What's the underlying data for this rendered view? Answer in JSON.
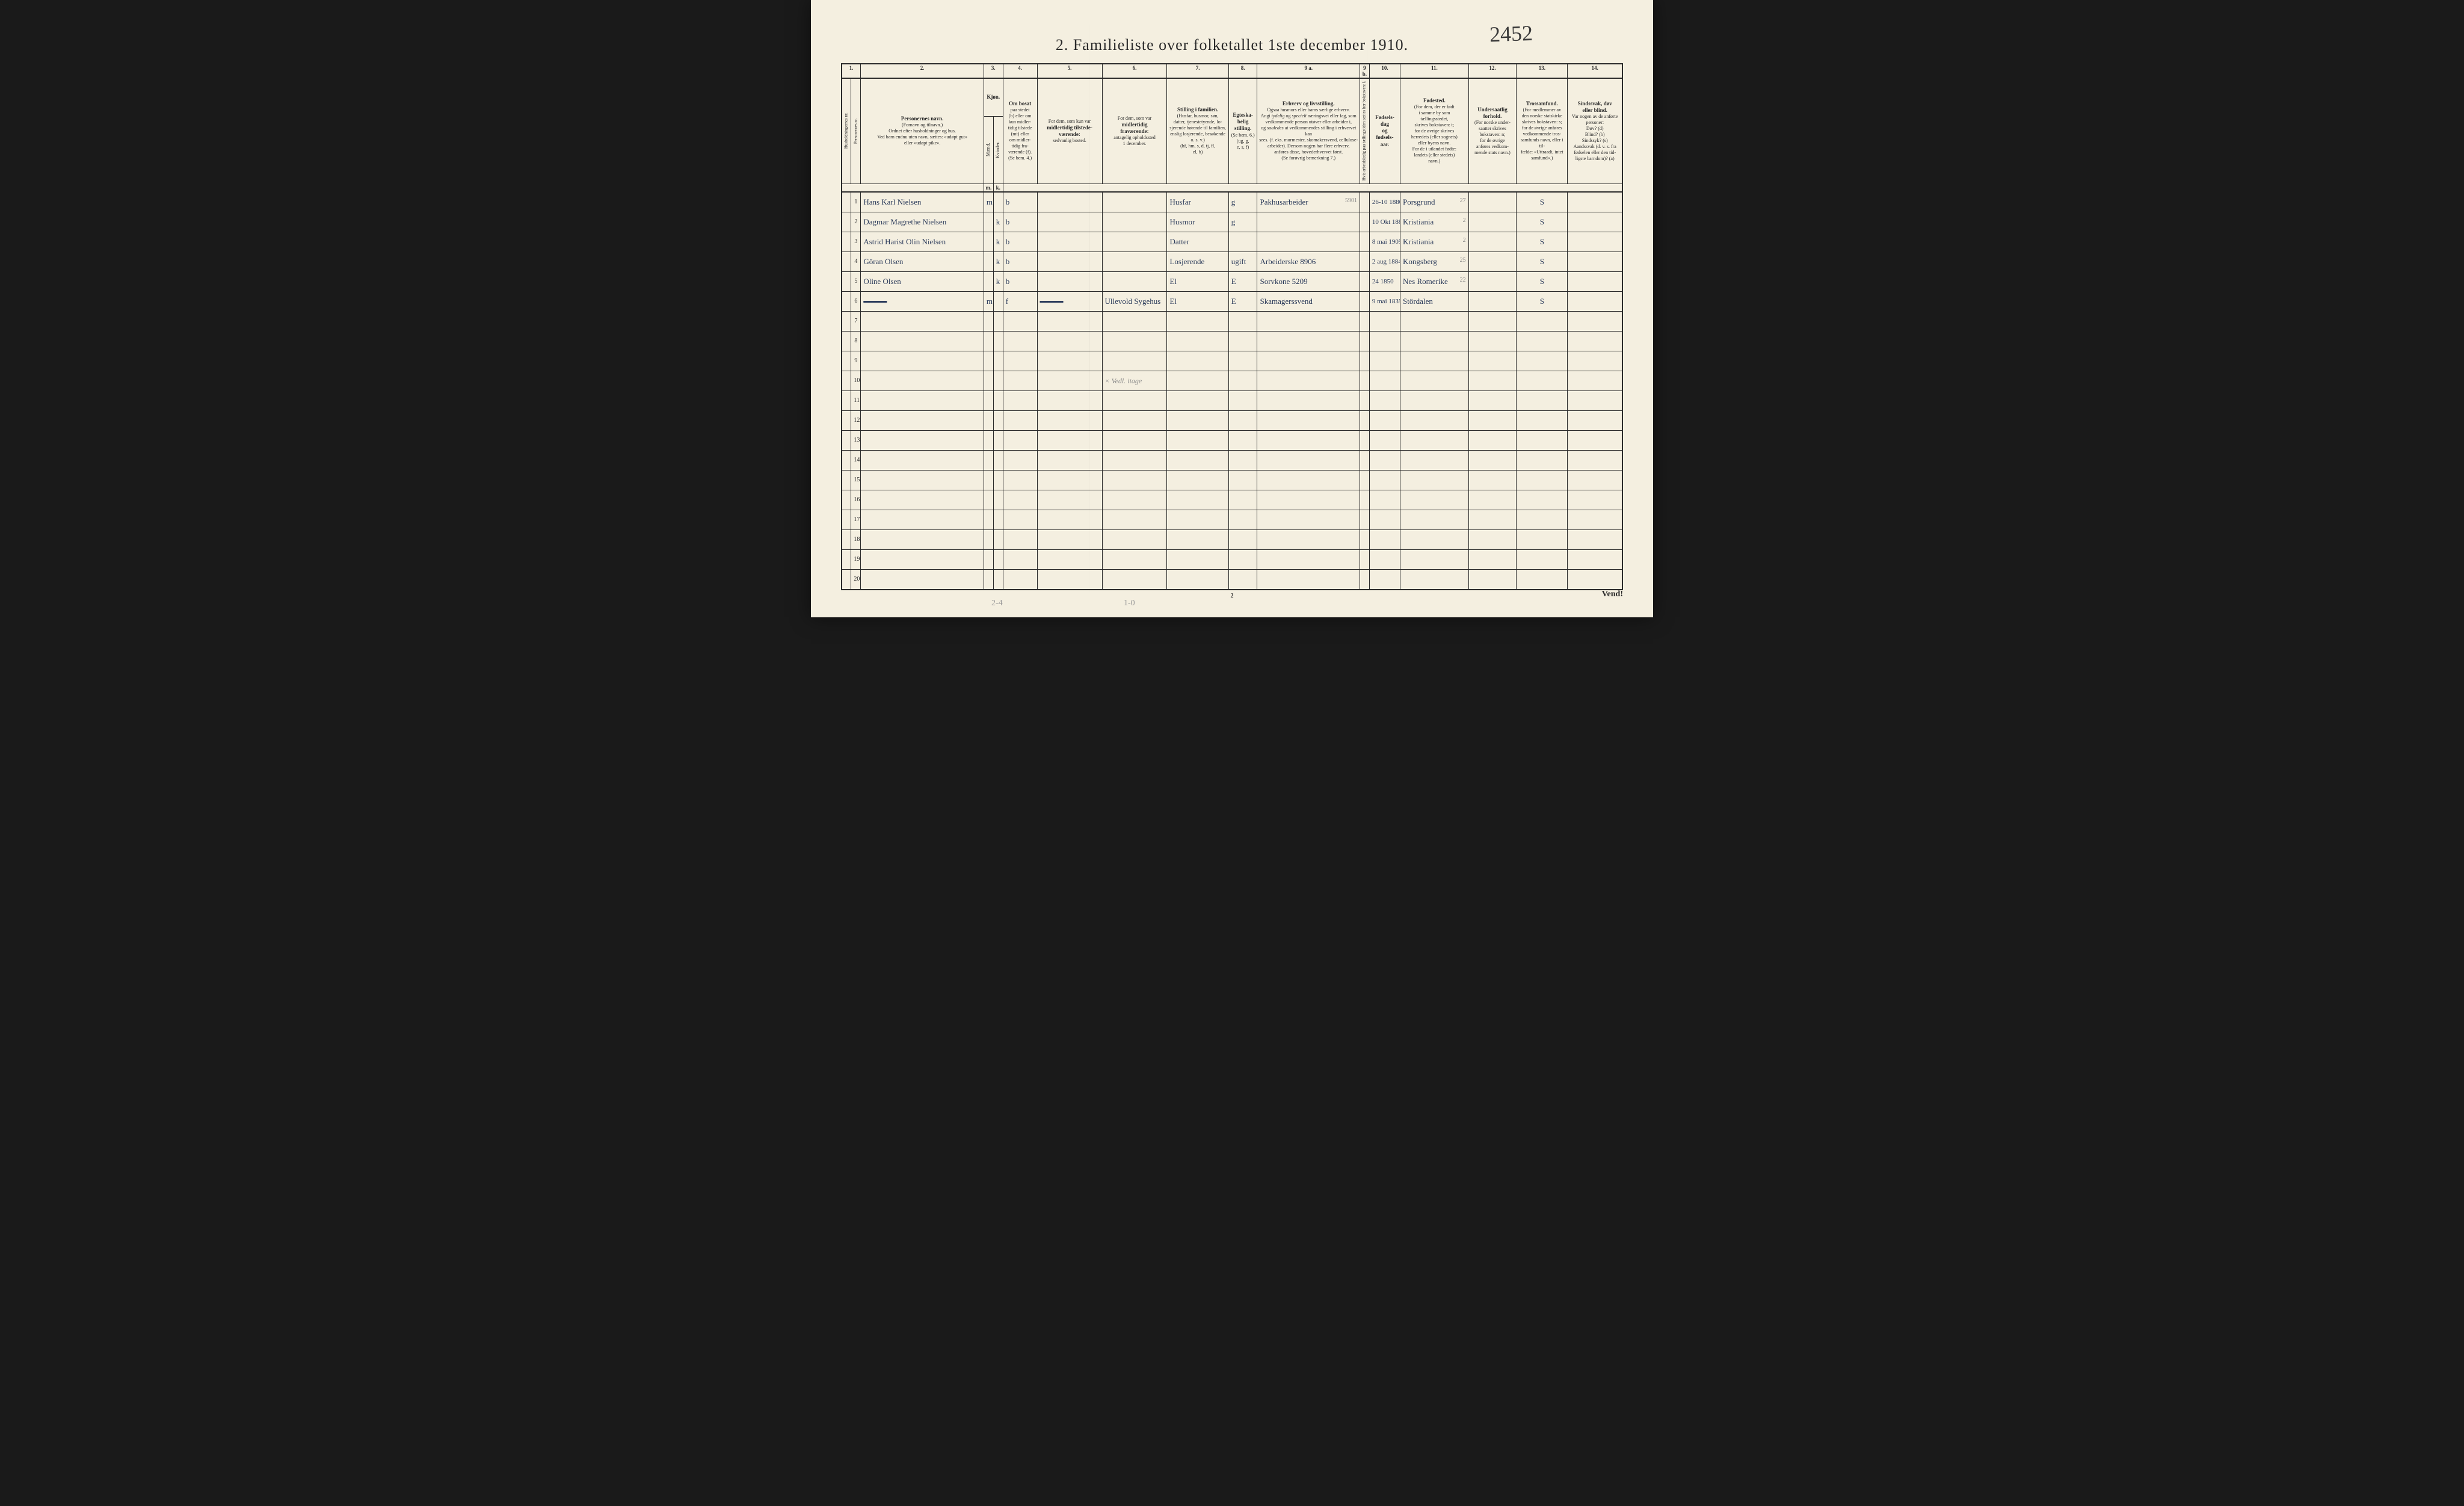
{
  "document": {
    "handwritten_number": "2452",
    "title": "2. Familieliste over folketallet 1ste december 1910.",
    "page_number": "2",
    "turn_text": "Vend!",
    "bottom_pencil": [
      "2-4",
      "1-0"
    ]
  },
  "columns": {
    "nums": [
      "1.",
      "",
      "2.",
      "3.",
      "",
      "4.",
      "5.",
      "6.",
      "7.",
      "8.",
      "9 a.",
      "9 b.",
      "10.",
      "11.",
      "12.",
      "13.",
      "14."
    ],
    "headers": [
      "Husholdningernes nr.",
      "Personernes nr.",
      "Personernes navn.\n(Fornavn og tilnavn.)\nOrdnet efter husholdninger og hus.\nVed barn endnu uten navn, sættes: «udøpt gut»\neller «udøpt pike».",
      "Kjøn.",
      "Mænd.",
      "Kvinder.",
      "Om bosat\npaa stedet\n(b) eller om\nkun midler-\ntidig tilstede\n(mt) eller\nom midler-\ntidig fra-\nværende (f).\n(Se bem. 4.)",
      "For dem, som kun var\nmidlertidig tilstede-\nværende:\nsedvanlig bosted.",
      "For dem, som var\nmidlertidig\nfraværende:\nantagelig opholdssted\n1 december.",
      "Stilling i familien.\n(Husfar, husmor, søn,\ndatter, tjenestetyende, losjerende hørende til familien,\nenslig losjerende, besøkende\no. s. v.)\n(hf, hm, s, d, tj, fl,\nel, b)",
      "Egteska-\nbelig\nstilling.\n(Se bem. 6.)\n(ug, g,\ne, s, f)",
      "Erhverv og livsstilling.\nOgsaa husmors eller barns særlige erhverv.\nAngi tydelig og specielt næringsvei eller fag, som\nvedkommende person utøver eller arbeider i,\nog saaledes at vedkommendes stilling i erhvervet kan\nsees. (f. eks. murmester, skomakersvend, cellulose-\narbeider). Dersom nogen har flere erhverv,\nanføres disse, hovederhvervet først.\n(Se forøvrig bemerkning 7.)",
      "Hvis arbeidsledig\npaa tællingstiden sættes\nher bokstaven: l.",
      "Fødsels-\ndag\nog\nfødsels-\naar.",
      "Fødested.\n(For dem, der er født\ni samme by som\ntællingsstedet,\nskrives bokstaven: t;\nfor de øvrige skrives\nherredets (eller sognets)\neller byens navn.\nFor de i utlandet fødte:\nlandets (eller stedets)\nnavn.)",
      "Undersaatlig\nforhold.\n(For norske under-\nsaatter skrives\nbokstaven: n;\nfor de øvrige\nanføres vedkom-\nmende stats navn.)",
      "Trossamfund.\n(For medlemmer av\nden norske statskirke\nskrives bokstaven: s;\nfor de øvrige anføres\nvedkommende tros-\nsamfunds navn, eller i til-\nfælde: «Uttraadt, intet\nsamfund».)",
      "Sindssvak, døv\neller blind.\nVar nogen av de anførte\npersoner:\nDøv? (d)\nBlind? (b)\nSindssyk? (s)\nAandssvak (d. v. s. fra\nfødselen eller den tid-\nligste barndom)? (a)"
    ],
    "subhead_mk": [
      "m.",
      "k."
    ]
  },
  "rows": [
    {
      "num": "1",
      "name": "Hans Karl Nielsen",
      "m": "m",
      "k": "",
      "bosat": "b",
      "midl_til": "",
      "midl_fra": "",
      "stilling": "Husfar",
      "egte": "g",
      "erhverv": "Pakhusarbeider",
      "erhverv_pencil": "5901",
      "led": "",
      "fodsel": "26-10 1880",
      "fodested": "Porsgrund",
      "fodested_pencil": "27",
      "under": "",
      "tros": "S",
      "sind": ""
    },
    {
      "num": "2",
      "name": "Dagmar Magrethe Nielsen",
      "m": "",
      "k": "k",
      "bosat": "b",
      "midl_til": "",
      "midl_fra": "",
      "stilling": "Husmor",
      "egte": "g",
      "erhverv": "",
      "erhverv_pencil": "",
      "led": "",
      "fodsel": "10 Okt 1886",
      "fodested": "Kristiania",
      "fodested_pencil": "2",
      "under": "",
      "tros": "S",
      "sind": ""
    },
    {
      "num": "3",
      "name": "Astrid Harist Olin Nielsen",
      "m": "",
      "k": "k",
      "bosat": "b",
      "midl_til": "",
      "midl_fra": "",
      "stilling": "Datter",
      "egte": "",
      "erhverv": "",
      "erhverv_pencil": "",
      "led": "",
      "fodsel": "8 mai 1905",
      "fodested": "Kristiania",
      "fodested_pencil": "2",
      "under": "",
      "tros": "S",
      "sind": ""
    },
    {
      "num": "4",
      "name": "Göran Olsen",
      "m": "",
      "k": "k",
      "bosat": "b",
      "midl_til": "",
      "midl_fra": "",
      "stilling": "Losjerende",
      "egte": "ugift",
      "erhverv": "Arbeiderske 8906",
      "erhverv_pencil": "",
      "led": "",
      "fodsel": "2 aug 1884",
      "fodested": "Kongsberg",
      "fodested_pencil": "25",
      "under": "",
      "tros": "S",
      "sind": ""
    },
    {
      "num": "5",
      "name": "Oline Olsen",
      "m": "",
      "k": "k",
      "bosat": "b",
      "midl_til": "",
      "midl_fra": "",
      "stilling": "El",
      "egte": "E",
      "erhverv": "Sorvkone 5209",
      "erhverv_pencil": "",
      "led": "",
      "fodsel": "24 1850",
      "fodested": "Nes Romerike",
      "fodested_pencil": "22",
      "under": "",
      "tros": "S",
      "sind": ""
    },
    {
      "num": "6",
      "name": "———",
      "struck": true,
      "m": "m",
      "k": "",
      "bosat": "f",
      "midl_til": "———",
      "midl_fra": "Ullevold Sygehus",
      "stilling": "El",
      "egte": "E",
      "erhverv": "Skamagerssvend",
      "erhverv_pencil": "",
      "led": "",
      "fodsel": "9 mai 1835",
      "fodested": "Stördalen",
      "fodested_pencil": "",
      "under": "",
      "tros": "S",
      "sind": ""
    }
  ],
  "empty_rows": [
    "7",
    "8",
    "9",
    "10",
    "11",
    "12",
    "13",
    "14",
    "15",
    "16",
    "17",
    "18",
    "19",
    "20"
  ],
  "annotations": {
    "row10_note": "× Vedl. itage"
  },
  "colors": {
    "paper": "#f4efe0",
    "ink": "#2a2a2a",
    "handwriting": "#2a3a5a",
    "pencil": "#888888",
    "background": "#1a1a1a"
  }
}
